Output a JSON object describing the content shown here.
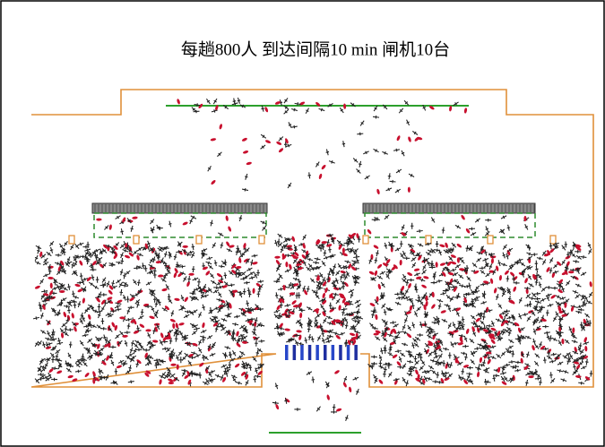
{
  "title": "每趟800人  到达间隔10 min  闸机10台"
}
